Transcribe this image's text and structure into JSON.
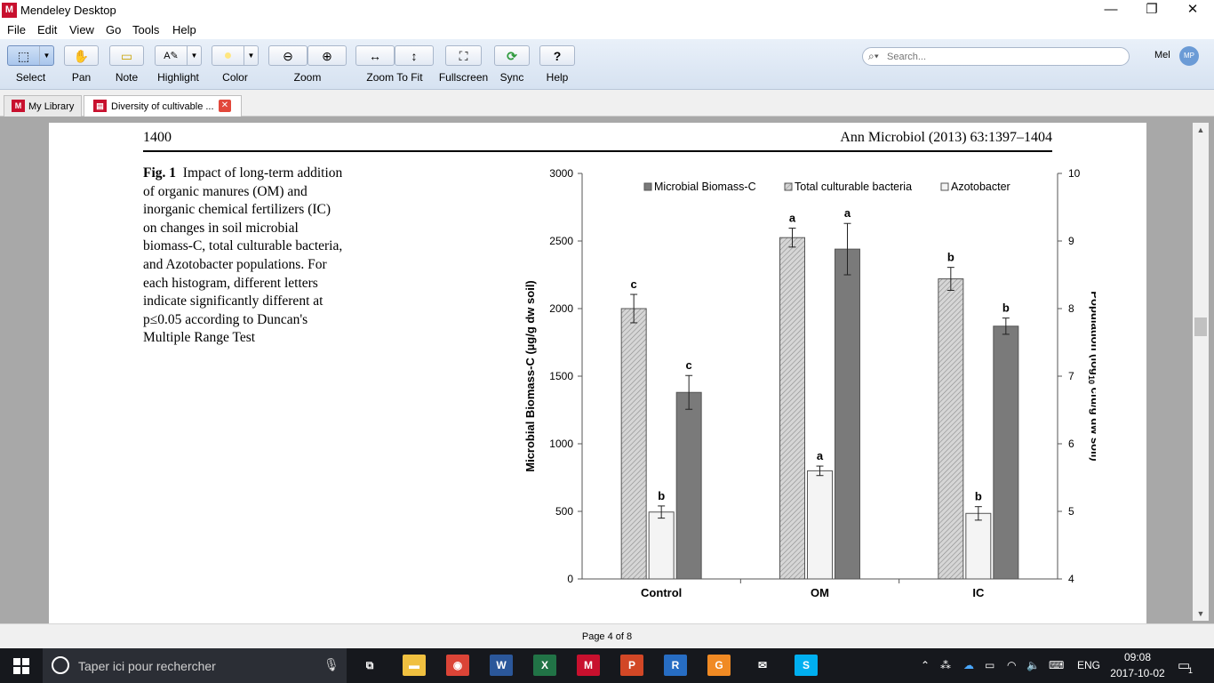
{
  "window": {
    "title": "Mendeley Desktop",
    "app_icon": "mendeley-logo-icon",
    "controls": {
      "minimize": "—",
      "restore": "❐",
      "close": "✕"
    }
  },
  "menu": {
    "items": [
      "File",
      "Edit",
      "View",
      "Go",
      "Tools",
      "Help"
    ]
  },
  "toolbar": {
    "buttons": [
      {
        "label": "Select",
        "icon": "select-rect-icon",
        "glyph": "⬚",
        "active": true
      },
      {
        "label": "Pan",
        "icon": "hand-icon",
        "glyph": "✋"
      },
      {
        "label": "Note",
        "icon": "sticky-note-icon",
        "glyph": "▭"
      },
      {
        "label": "Highlight",
        "icon": "highlight-pen-icon",
        "glyph": "A✎"
      },
      {
        "label": "Color",
        "icon": "color-swatch-icon",
        "glyph": "●",
        "color": "#ffe680"
      },
      {
        "label": "Zoom",
        "icon": "zoom-icon"
      },
      {
        "label": "Zoom To Fit",
        "icon": "zoom-to-fit-icon"
      },
      {
        "label": "Fullscreen",
        "icon": "fullscreen-icon",
        "glyph": "⛶"
      },
      {
        "label": "Sync",
        "icon": "sync-icon",
        "glyph": "⟳",
        "color": "#2e9a3c"
      },
      {
        "label": "Help",
        "icon": "help-icon",
        "glyph": "?"
      }
    ],
    "zoom_out_glyph": "⊖",
    "zoom_in_glyph": "⊕",
    "fit_width_glyph": "↔",
    "fit_height_glyph": "↕",
    "search_placeholder": "Search...",
    "user_name": "Mel",
    "user_initials": "MP"
  },
  "tabs": [
    {
      "label": "My Library",
      "icon": "mendeley-logo-icon",
      "active": false
    },
    {
      "label": "Diversity of cultivable ...",
      "icon": "pdf-icon",
      "active": true,
      "close": "✕"
    }
  ],
  "document": {
    "page_number": "1400",
    "journal_ref": "Ann Microbiol (2013) 63:1397–1404",
    "caption": {
      "label": "Fig. 1",
      "text": "Impact of long-term addition of organic manures (OM) and inorganic chemical fertilizers (IC) on changes in soil microbial biomass-C, total culturable bacteria, and Azotobacter populations. For each histogram, different letters indicate significantly different at p≤0.05 according to Duncan's Multiple Range Test"
    },
    "page_indicator": "Page 4 of 8"
  },
  "chart_data": {
    "type": "bar",
    "categories": [
      "Control",
      "OM",
      "IC"
    ],
    "legend": [
      "Microbial Biomass-C",
      "Total culturable bacteria",
      "Azotobacter"
    ],
    "legend_position": "top",
    "y_left": {
      "label": "Microbial Biomass-C (µg/g dw soil)",
      "range": [
        0,
        3000
      ],
      "ticks": [
        0,
        500,
        1000,
        1500,
        2000,
        2500,
        3000
      ]
    },
    "y_right": {
      "label_main": "Population (log",
      "label_sub": "10",
      "label_tail": " cfu/g dw soil)",
      "range": [
        4,
        10
      ],
      "ticks": [
        4,
        5,
        6,
        7,
        8,
        9,
        10
      ]
    },
    "series": [
      {
        "name": "Total culturable bacteria",
        "axis": "right",
        "pattern": "hatch",
        "color": "#d0d0d0",
        "values": [
          8.0,
          9.05,
          8.44
        ],
        "errors": [
          0.21,
          0.14,
          0.17
        ],
        "letters": [
          "c",
          "a",
          "b"
        ]
      },
      {
        "name": "Azotobacter",
        "axis": "right",
        "pattern": "solid",
        "color": "#f4f4f4",
        "values": [
          4.99,
          5.6,
          4.97
        ],
        "errors": [
          0.09,
          0.07,
          0.1
        ],
        "letters": [
          "b",
          "a",
          "b"
        ]
      },
      {
        "name": "Microbial Biomass-C",
        "axis": "left",
        "pattern": "solid",
        "color": "#7a7a7a",
        "values": [
          1380,
          2440,
          1870
        ],
        "errors": [
          125,
          190,
          60
        ],
        "letters": [
          "c",
          "a",
          "b"
        ]
      }
    ]
  },
  "taskbar": {
    "search_placeholder": "Taper ici pour rechercher",
    "apps": [
      {
        "name": "task-view-icon",
        "glyph": "⧉",
        "color": "#16181d"
      },
      {
        "name": "file-explorer-icon",
        "glyph": "▬",
        "color": "#f0c040"
      },
      {
        "name": "chrome-icon",
        "glyph": "◉",
        "color": "#db4437"
      },
      {
        "name": "word-icon",
        "glyph": "W",
        "color": "#2b579a"
      },
      {
        "name": "excel-icon",
        "glyph": "X",
        "color": "#217346"
      },
      {
        "name": "mendeley-icon",
        "glyph": "M",
        "color": "#c8102e"
      },
      {
        "name": "powerpoint-icon",
        "glyph": "P",
        "color": "#d24726"
      },
      {
        "name": "r-icon",
        "glyph": "R",
        "color": "#276dc3"
      },
      {
        "name": "foxit-icon",
        "glyph": "G",
        "color": "#f08a24"
      },
      {
        "name": "mail-icon",
        "glyph": "✉",
        "color": "#16181d"
      },
      {
        "name": "skype-icon",
        "glyph": "S",
        "color": "#00aff0"
      }
    ],
    "lang": "ENG",
    "time": "09:08",
    "date": "2017-10-02",
    "notif_count": "1"
  }
}
